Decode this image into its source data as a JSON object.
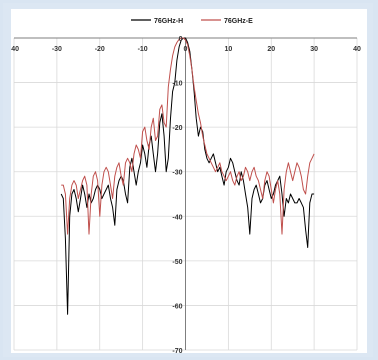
{
  "chart_data": {
    "type": "line",
    "title": "",
    "xlabel": "",
    "ylabel": "",
    "xlim": [
      -40,
      40
    ],
    "ylim": [
      -70,
      0
    ],
    "xticks": [
      -40,
      -30,
      -20,
      -10,
      0,
      10,
      20,
      30,
      40
    ],
    "yticks": [
      0,
      -10,
      -20,
      -30,
      -40,
      -50,
      -60,
      -70
    ],
    "grid": true,
    "legend": "top-center",
    "series": [
      {
        "name": "76GHz-H",
        "color": "#000000",
        "x": [
          -29,
          -28.5,
          -28,
          -27.5,
          -27,
          -26.5,
          -26,
          -25.5,
          -25,
          -24.5,
          -24,
          -23.5,
          -23,
          -22.5,
          -22,
          -21.5,
          -21,
          -20.5,
          -20,
          -19.5,
          -19,
          -18.5,
          -18,
          -17.5,
          -17,
          -16.5,
          -16,
          -15.5,
          -15,
          -14.5,
          -14,
          -13.5,
          -13,
          -12.5,
          -12,
          -11.5,
          -11,
          -10.5,
          -10,
          -9.5,
          -9,
          -8.5,
          -8,
          -7.5,
          -7,
          -6.5,
          -6,
          -5.5,
          -5,
          -4.5,
          -4,
          -3.5,
          -3,
          -2.5,
          -2,
          -1.5,
          -1,
          -0.5,
          0,
          0.5,
          1,
          1.5,
          2,
          2.5,
          3,
          3.5,
          4,
          4.5,
          5,
          5.5,
          6,
          6.5,
          7,
          7.5,
          8,
          8.5,
          9,
          9.5,
          10,
          10.5,
          11,
          11.5,
          12,
          12.5,
          13,
          13.5,
          14,
          14.5,
          15,
          15.5,
          16,
          16.5,
          17,
          17.5,
          18,
          18.5,
          19,
          19.5,
          20,
          20.5,
          21,
          21.5,
          22,
          22.5,
          23,
          23.5,
          24,
          24.5,
          25,
          25.5,
          26,
          26.5,
          27,
          27.5,
          28,
          28.5,
          29,
          29.5,
          30
        ],
        "y": [
          -35,
          -36,
          -45,
          -62,
          -40,
          -35,
          -34,
          -36,
          -39,
          -36,
          -33,
          -35,
          -38,
          -35,
          -37,
          -36,
          -34,
          -33,
          -34,
          -36,
          -35,
          -34,
          -33,
          -36,
          -38,
          -42,
          -34,
          -32,
          -31,
          -32,
          -35,
          -37,
          -29,
          -27,
          -30,
          -33,
          -30,
          -28,
          -24,
          -26,
          -29,
          -24,
          -22,
          -26,
          -30,
          -26,
          -19,
          -17,
          -22,
          -30,
          -27,
          -18,
          -12,
          -10,
          -5,
          -2,
          -0.5,
          0,
          0,
          -1,
          -3,
          -7,
          -12,
          -18,
          -22,
          -20,
          -21,
          -25,
          -27,
          -28,
          -27,
          -26,
          -28,
          -30,
          -29,
          -31,
          -33,
          -30,
          -29,
          -27,
          -28,
          -30,
          -32,
          -33,
          -30,
          -32,
          -35,
          -38,
          -44,
          -36,
          -34,
          -33,
          -35,
          -37,
          -36,
          -33,
          -32,
          -34,
          -36,
          -35,
          -33,
          -32,
          -31,
          -35,
          -40,
          -36,
          -37,
          -35,
          -36,
          -37,
          -37,
          -36,
          -37,
          -38,
          -43,
          -47,
          -37,
          -35,
          -35
        ],
        "markers": false
      },
      {
        "name": "76GHz-E",
        "color": "#c0504d",
        "x": [
          -29,
          -28.5,
          -28,
          -27.5,
          -27,
          -26.5,
          -26,
          -25.5,
          -25,
          -24.5,
          -24,
          -23.5,
          -23,
          -22.5,
          -22,
          -21.5,
          -21,
          -20.5,
          -20,
          -19.5,
          -19,
          -18.5,
          -18,
          -17.5,
          -17,
          -16.5,
          -16,
          -15.5,
          -15,
          -14.5,
          -14,
          -13.5,
          -13,
          -12.5,
          -12,
          -11.5,
          -11,
          -10.5,
          -10,
          -9.5,
          -9,
          -8.5,
          -8,
          -7.5,
          -7,
          -6.5,
          -6,
          -5.5,
          -5,
          -4.5,
          -4,
          -3.5,
          -3,
          -2.5,
          -2,
          -1.5,
          -1,
          -0.5,
          0,
          0.5,
          1,
          1.5,
          2,
          2.5,
          3,
          3.5,
          4,
          4.5,
          5,
          5.5,
          6,
          6.5,
          7,
          7.5,
          8,
          8.5,
          9,
          9.5,
          10,
          10.5,
          11,
          11.5,
          12,
          12.5,
          13,
          13.5,
          14,
          14.5,
          15,
          15.5,
          16,
          16.5,
          17,
          17.5,
          18,
          18.5,
          19,
          19.5,
          20,
          20.5,
          21,
          21.5,
          22,
          22.5,
          23,
          23.5,
          24,
          24.5,
          25,
          25.5,
          26,
          26.5,
          27,
          27.5,
          28,
          28.5,
          29,
          29.5,
          30
        ],
        "y": [
          -33,
          -33,
          -35,
          -44,
          -36,
          -33,
          -32,
          -33,
          -36,
          -34,
          -32,
          -31,
          -33,
          -44,
          -35,
          -31,
          -30,
          -32,
          -40,
          -33,
          -30,
          -29,
          -30,
          -33,
          -36,
          -31,
          -29,
          -28,
          -31,
          -33,
          -28,
          -27,
          -28,
          -30,
          -26,
          -24,
          -25,
          -27,
          -21,
          -20,
          -23,
          -25,
          -20,
          -18,
          -23,
          -22,
          -16,
          -15,
          -19,
          -20,
          -11,
          -7,
          -4,
          -2,
          -1,
          -0.3,
          0,
          0,
          -0.5,
          -1.5,
          -4,
          -7,
          -11,
          -14,
          -17,
          -19,
          -22,
          -24,
          -26,
          -27,
          -28,
          -29,
          -30,
          -29,
          -28,
          -30,
          -31,
          -32,
          -31,
          -30,
          -32,
          -33,
          -31,
          -30,
          -32,
          -31,
          -29,
          -30,
          -32,
          -30,
          -29,
          -31,
          -32,
          -34,
          -36,
          -32,
          -30,
          -31,
          -34,
          -37,
          -34,
          -32,
          -35,
          -44,
          -34,
          -30,
          -28,
          -30,
          -32,
          -30,
          -28,
          -29,
          -31,
          -34,
          -35,
          -31,
          -28,
          -27,
          -26
        ],
        "markers": false
      }
    ]
  }
}
